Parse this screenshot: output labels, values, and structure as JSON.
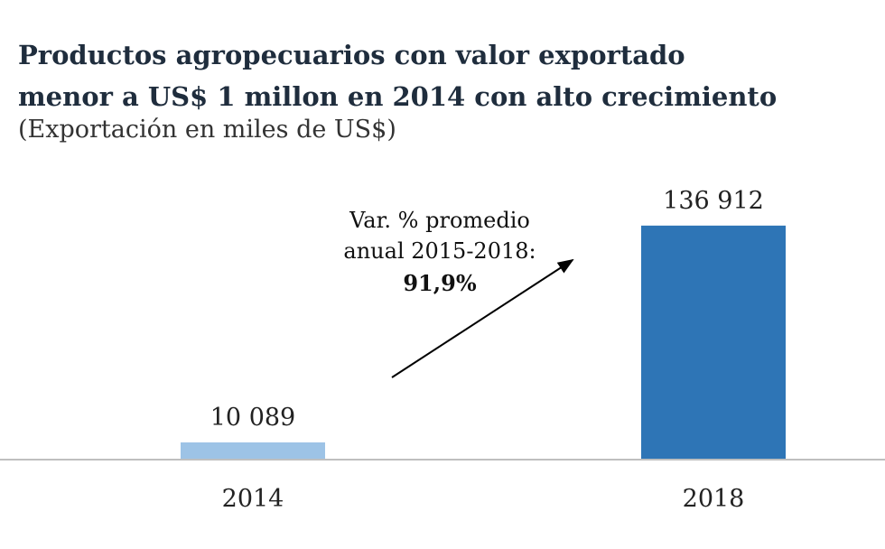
{
  "chart_data": {
    "type": "bar",
    "title_line1": "Productos agropecuarios con valor exportado",
    "title_line2": "menor a US$ 1 millon en 2014 con alto crecimiento",
    "subtitle": "(Exportación en miles de US$)",
    "categories": [
      "2014",
      "2018"
    ],
    "values": [
      10089,
      136912
    ],
    "value_labels": [
      "10 089",
      "136 912"
    ],
    "colors": [
      "#9dc3e6",
      "#2e75b6"
    ],
    "xlabel": "",
    "ylabel": "",
    "ylim": [
      0,
      140000
    ],
    "grid": false,
    "annotation": {
      "line1": "Var. % promedio",
      "line2": "anual 2015-2018:",
      "value": "91,9%"
    }
  }
}
